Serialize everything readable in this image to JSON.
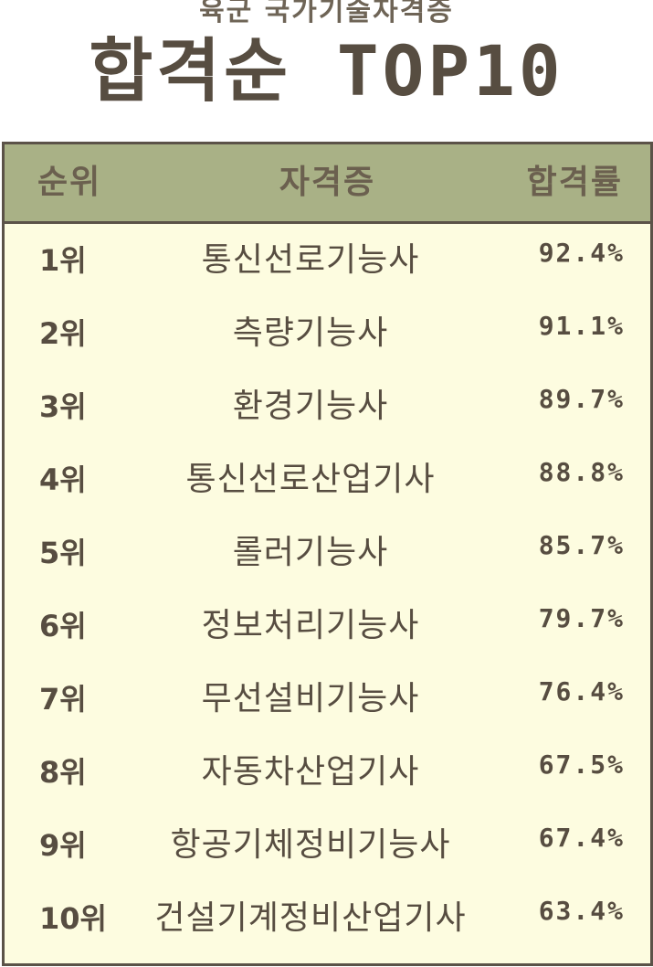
{
  "header": {
    "subtitle": "육군 국가기술자격증",
    "title": "합격순 TOP10"
  },
  "table": {
    "columns": {
      "rank": "순위",
      "name": "자격증",
      "rate": "합격률"
    },
    "rows": [
      {
        "rank": "1위",
        "name": "통신선로기능사",
        "rate": "92.4%"
      },
      {
        "rank": "2위",
        "name": "측량기능사",
        "rate": "91.1%"
      },
      {
        "rank": "3위",
        "name": "환경기능사",
        "rate": "89.7%"
      },
      {
        "rank": "4위",
        "name": "통신선로산업기사",
        "rate": "88.8%"
      },
      {
        "rank": "5위",
        "name": "롤러기능사",
        "rate": "85.7%"
      },
      {
        "rank": "6위",
        "name": "정보처리기능사",
        "rate": "79.7%"
      },
      {
        "rank": "7위",
        "name": "무선설비기능사",
        "rate": "76.4%"
      },
      {
        "rank": "8위",
        "name": "자동차산업기사",
        "rate": "67.5%"
      },
      {
        "rank": "9위",
        "name": "항공기체정비기능사",
        "rate": "67.4%"
      },
      {
        "rank": "10위",
        "name": "건설기계정비산업기사",
        "rate": "63.4%"
      }
    ]
  },
  "colors": {
    "header_background": "#a9b186",
    "table_background": "#fdfce0",
    "border": "#5b5248",
    "text": "#574d41"
  }
}
